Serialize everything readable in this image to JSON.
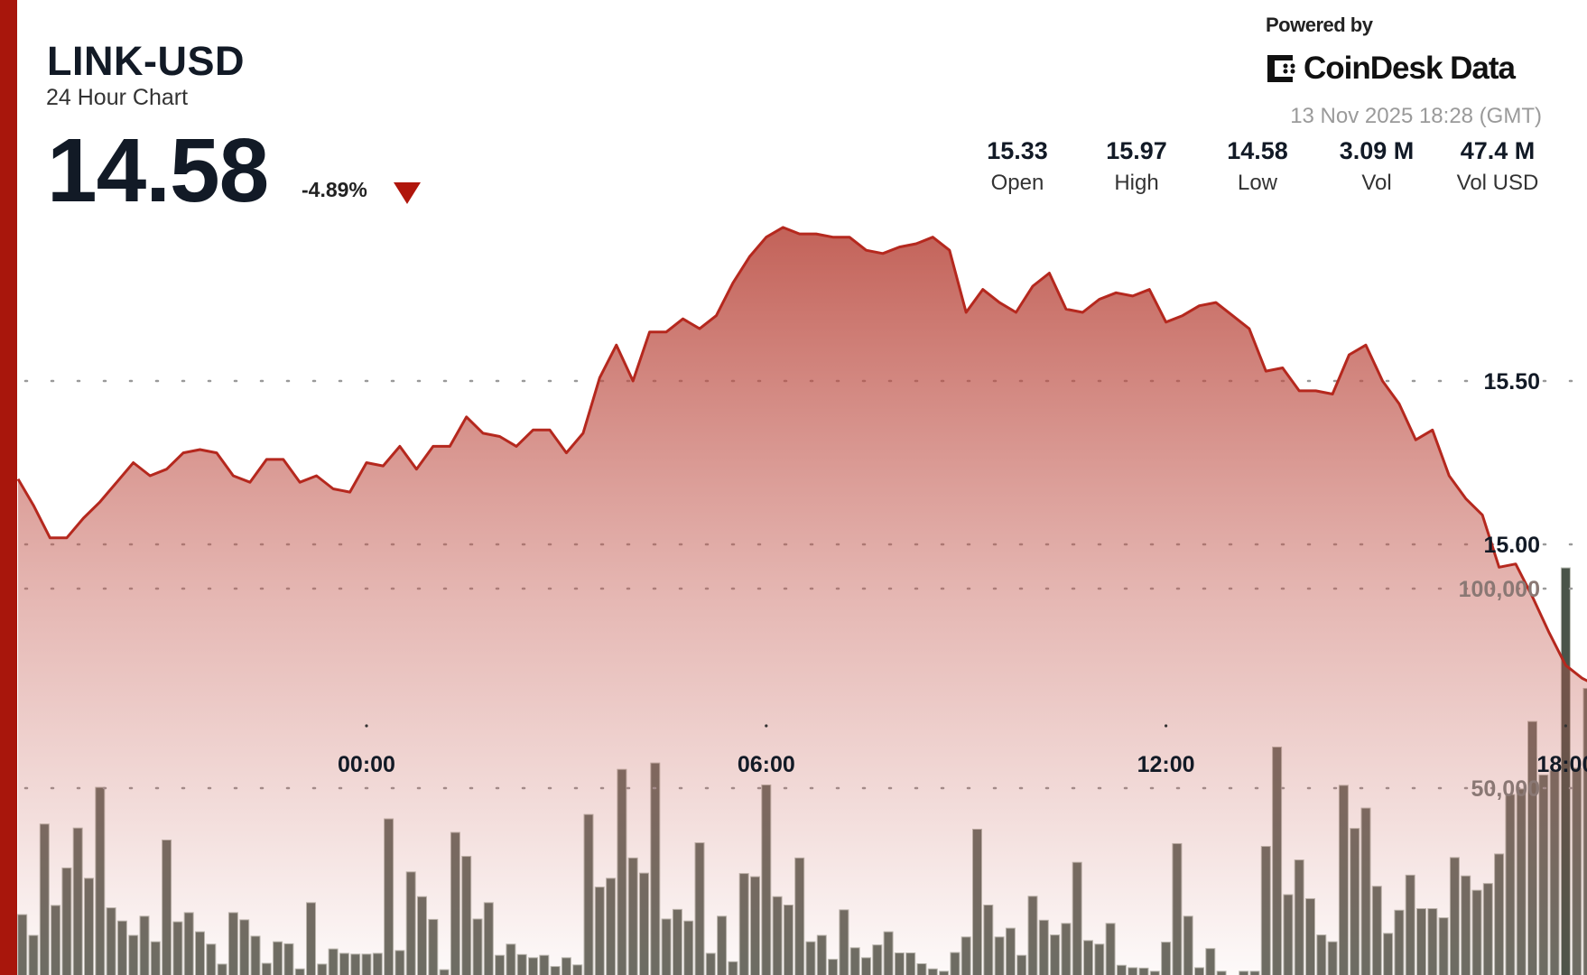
{
  "header": {
    "symbol": "LINK-USD",
    "subtitle": "24 Hour Chart",
    "price": "14.58",
    "change": "-4.89%",
    "direction_icon": "triangle-down-icon",
    "down_color": "#b0160c"
  },
  "branding": {
    "powered_by": "Powered by",
    "brand": "CoinDesk Data",
    "logo_icon": "coindesk-logo-icon",
    "timestamp": "13 Nov 2025 18:28 (GMT)"
  },
  "stats": [
    {
      "value": "15.33",
      "label": "Open"
    },
    {
      "value": "15.97",
      "label": "High"
    },
    {
      "value": "14.58",
      "label": "Low"
    },
    {
      "value": "3.09 M",
      "label": "Vol"
    },
    {
      "value": "47.4 M",
      "label": "Vol USD"
    }
  ],
  "colors": {
    "accent": "#a8160c",
    "line": "#b5281e",
    "volume_bar": "#6a6d64",
    "volume_highlight": "#4a5449"
  },
  "chart_data": {
    "type": "area",
    "grid": true,
    "price_axis": {
      "ticks": [
        15.0,
        15.5
      ],
      "tick_labels": [
        "15.00",
        "15.50"
      ]
    },
    "volume_axis": {
      "ticks": [
        50000,
        100000
      ],
      "tick_labels": [
        "50,000",
        "100,000"
      ]
    },
    "x_ticks": [
      "00:00",
      "06:00",
      "12:00",
      "18:00"
    ],
    "price": {
      "times": [
        "18:45",
        "19:00",
        "19:15",
        "19:30",
        "19:45",
        "20:00",
        "20:15",
        "20:30",
        "20:45",
        "21:00",
        "21:15",
        "21:30",
        "21:45",
        "22:00",
        "22:15",
        "22:30",
        "22:45",
        "23:00",
        "23:15",
        "23:30",
        "23:45",
        "00:00",
        "00:15",
        "00:30",
        "00:45",
        "01:00",
        "01:15",
        "01:30",
        "01:45",
        "02:00",
        "02:15",
        "02:30",
        "02:45",
        "03:00",
        "03:15",
        "03:30",
        "03:45",
        "04:00",
        "04:15",
        "04:30",
        "04:45",
        "05:00",
        "05:15",
        "05:30",
        "05:45",
        "06:00",
        "06:15",
        "06:30",
        "06:45",
        "07:00",
        "07:15",
        "07:30",
        "07:45",
        "08:00",
        "08:15",
        "08:30",
        "08:45",
        "09:00",
        "09:15",
        "09:30",
        "09:45",
        "10:00",
        "10:15",
        "10:30",
        "10:45",
        "11:00",
        "11:15",
        "11:30",
        "11:45",
        "12:00",
        "12:15",
        "12:30",
        "12:45",
        "13:00",
        "13:15",
        "13:30",
        "13:45",
        "14:00",
        "14:15",
        "14:30",
        "14:45",
        "15:00",
        "15:15",
        "15:30",
        "15:45",
        "16:00",
        "16:15",
        "16:30",
        "16:45",
        "17:00",
        "17:15",
        "17:30",
        "17:45",
        "18:00",
        "18:15",
        "18:30"
      ],
      "values": [
        15.2,
        15.12,
        15.02,
        15.02,
        15.08,
        15.13,
        15.19,
        15.25,
        15.21,
        15.23,
        15.28,
        15.29,
        15.28,
        15.21,
        15.19,
        15.26,
        15.26,
        15.19,
        15.21,
        15.17,
        15.16,
        15.25,
        15.24,
        15.3,
        15.23,
        15.3,
        15.3,
        15.39,
        15.34,
        15.33,
        15.3,
        15.35,
        15.35,
        15.28,
        15.34,
        15.51,
        15.61,
        15.5,
        15.65,
        15.65,
        15.69,
        15.66,
        15.7,
        15.8,
        15.88,
        15.94,
        15.97,
        15.95,
        15.95,
        15.94,
        15.94,
        15.9,
        15.89,
        15.91,
        15.92,
        15.94,
        15.9,
        15.71,
        15.78,
        15.74,
        15.71,
        15.79,
        15.83,
        15.72,
        15.71,
        15.75,
        15.77,
        15.76,
        15.78,
        15.68,
        15.7,
        15.73,
        15.74,
        15.7,
        15.66,
        15.53,
        15.54,
        15.47,
        15.47,
        15.46,
        15.58,
        15.61,
        15.5,
        15.43,
        15.32,
        15.35,
        15.21,
        15.14,
        15.09,
        14.93,
        14.94,
        14.84,
        14.73,
        14.63,
        14.59,
        14.58
      ]
    },
    "volume": {
      "times": [
        "18:50",
        "19:00",
        "19:10",
        "19:20",
        "19:30",
        "19:40",
        "19:50",
        "20:00",
        "20:10",
        "20:20",
        "20:30",
        "20:40",
        "20:50",
        "21:00",
        "21:10",
        "21:20",
        "21:30",
        "21:40",
        "21:50",
        "22:00",
        "22:10",
        "22:20",
        "22:30",
        "22:40",
        "22:50",
        "23:00",
        "23:10",
        "23:20",
        "23:30",
        "23:40",
        "23:50",
        "00:00",
        "00:10",
        "00:20",
        "00:30",
        "00:40",
        "00:50",
        "01:00",
        "01:10",
        "01:20",
        "01:30",
        "01:40",
        "01:50",
        "02:00",
        "02:10",
        "02:20",
        "02:30",
        "02:40",
        "02:50",
        "03:00",
        "03:10",
        "03:20",
        "03:30",
        "03:40",
        "03:50",
        "04:00",
        "04:10",
        "04:20",
        "04:30",
        "04:40",
        "04:50",
        "05:00",
        "05:10",
        "05:20",
        "05:30",
        "05:40",
        "05:50",
        "06:00",
        "06:10",
        "06:20",
        "06:30",
        "06:40",
        "06:50",
        "07:00",
        "07:10",
        "07:20",
        "07:30",
        "07:40",
        "07:50",
        "08:00",
        "08:10",
        "08:20",
        "08:30",
        "08:40",
        "08:50",
        "09:00",
        "09:10",
        "09:20",
        "09:30",
        "09:40",
        "09:50",
        "10:00",
        "10:10",
        "10:20",
        "10:30",
        "10:40",
        "10:50",
        "11:00",
        "11:10",
        "11:20",
        "11:30",
        "11:40",
        "11:50",
        "12:00",
        "12:10",
        "12:20",
        "12:30",
        "12:40",
        "12:50",
        "13:00",
        "13:10",
        "13:20",
        "13:30",
        "13:40",
        "13:50",
        "14:00",
        "14:10",
        "14:20",
        "14:30",
        "14:40",
        "14:50",
        "15:00",
        "15:10",
        "15:20",
        "15:30",
        "15:40",
        "15:50",
        "16:00",
        "16:10",
        "16:20",
        "16:30",
        "16:40",
        "16:50",
        "17:00",
        "17:10",
        "17:20",
        "17:30",
        "17:40",
        "17:50",
        "18:00",
        "18:10",
        "18:20",
        "18:30"
      ],
      "values": [
        18300,
        13100,
        41000,
        20600,
        30000,
        40000,
        27400,
        50200,
        20000,
        16700,
        13100,
        17900,
        11500,
        37000,
        16500,
        18800,
        14000,
        10900,
        5900,
        18800,
        17000,
        12900,
        6100,
        11500,
        11000,
        4700,
        21300,
        5900,
        9700,
        8600,
        8400,
        8400,
        8600,
        42300,
        9300,
        29000,
        22800,
        17100,
        4500,
        38900,
        32900,
        17200,
        21300,
        8100,
        10900,
        8300,
        7500,
        8100,
        5300,
        7500,
        5700,
        43400,
        25200,
        27400,
        54700,
        32500,
        28700,
        56300,
        17200,
        19600,
        16700,
        36300,
        8600,
        17900,
        6500,
        28600,
        27800,
        50800,
        22800,
        20700,
        32500,
        11500,
        13100,
        7100,
        19500,
        10000,
        7500,
        10700,
        14000,
        8700,
        8700,
        6000,
        4700,
        4100,
        8800,
        12700,
        39700,
        20700,
        12700,
        14900,
        8100,
        22900,
        16900,
        13200,
        16100,
        31400,
        11800,
        10900,
        16100,
        5600,
        5000,
        4900,
        4100,
        11400,
        36100,
        17900,
        5000,
        9800,
        4100,
        2500,
        4100,
        4100,
        35400,
        60300,
        23300,
        32000,
        22300,
        13200,
        11500,
        50700,
        39900,
        45000,
        25400,
        13600,
        19400,
        28200,
        19800,
        19800,
        17500,
        32600,
        28000,
        24400,
        26100,
        33500,
        48400,
        49800,
        66700,
        53300,
        54400,
        105200,
        55000,
        75000,
        20100
      ],
      "highlighted_time": "18:00"
    }
  }
}
